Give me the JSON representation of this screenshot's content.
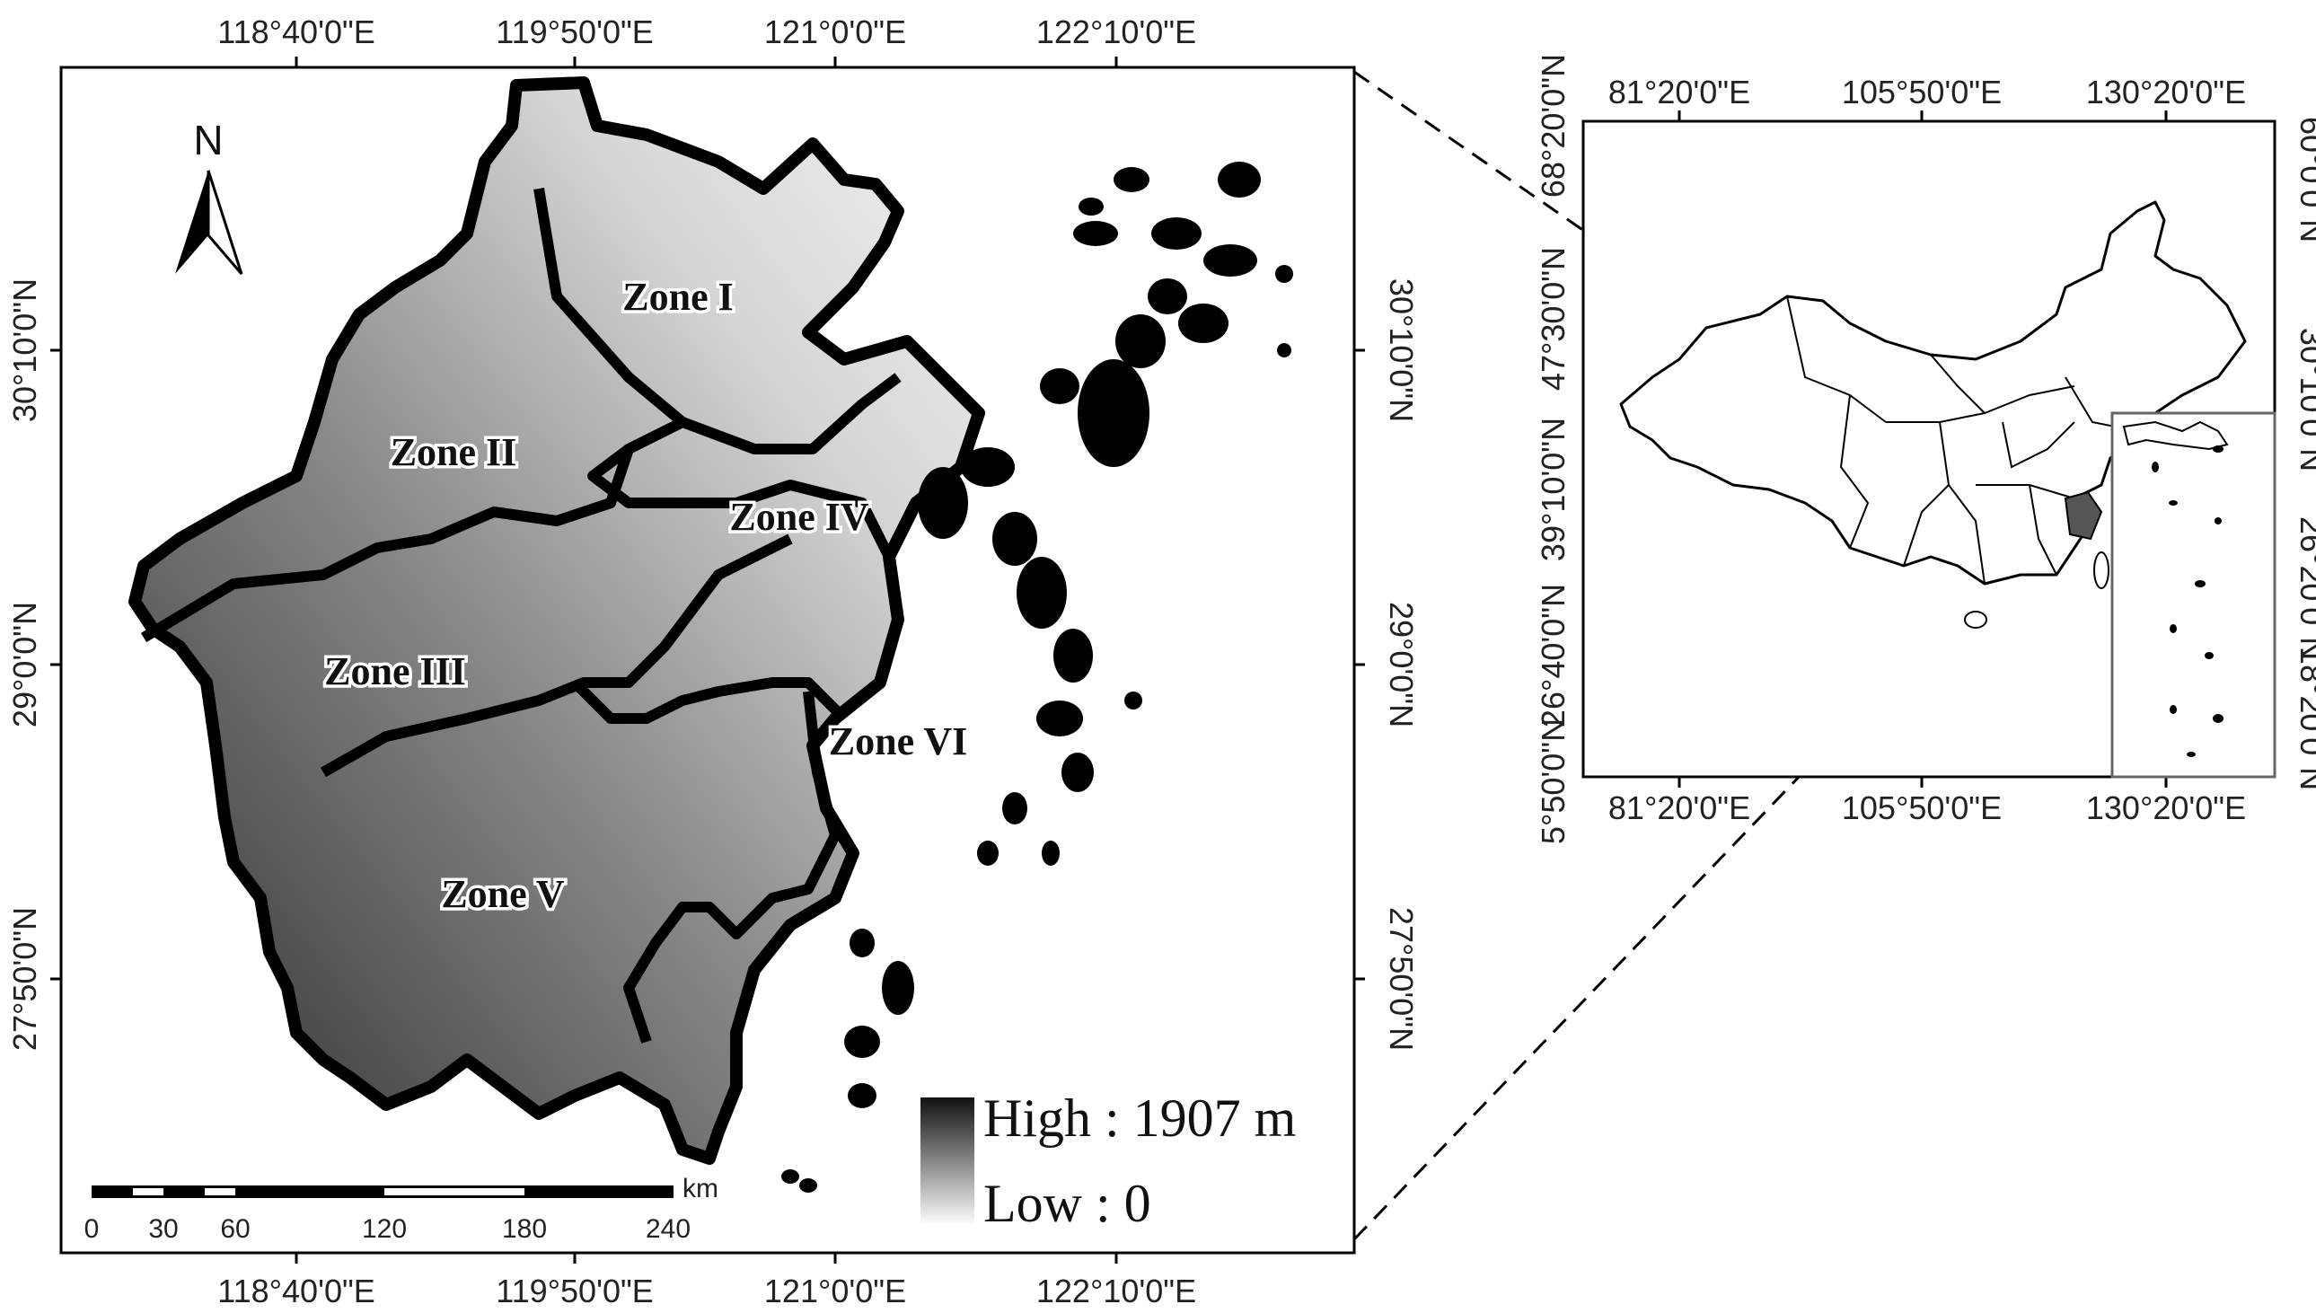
{
  "main_map": {
    "top_ticks": [
      "118°40'0\"E",
      "119°50'0\"E",
      "121°0'0\"E",
      "122°10'0\"E"
    ],
    "bottom_ticks": [
      "118°40'0\"E",
      "119°50'0\"E",
      "121°0'0\"E",
      "122°10'0\"E"
    ],
    "left_ticks": [
      "30°10'0\"N",
      "29°0'0\"N",
      "27°50'0\"N"
    ],
    "right_ticks": [
      "30°10'0\"N",
      "29°0'0\"N",
      "27°50'0\"N"
    ],
    "zones": [
      "Zone I",
      "Zone II",
      "Zone III",
      "Zone IV",
      "Zone V",
      "Zone VI"
    ],
    "legend": {
      "high": "High : 1907 m",
      "low": "Low : 0"
    },
    "north_label": "N",
    "scale_bar": {
      "unit": "km",
      "ticks": [
        "0",
        "30",
        "60",
        "120",
        "180",
        "240"
      ]
    }
  },
  "inset_map": {
    "top_ticks": [
      "81°20'0\"E",
      "105°50'0\"E",
      "130°20'0\"E"
    ],
    "bottom_ticks": [
      "81°20'0\"E",
      "105°50'0\"E",
      "130°20'0\"E"
    ],
    "left_ticks": [
      "68°20'0\"N",
      "47°30'0\"N",
      "39°10'0\"N",
      "26°40'0\"N",
      "5°50'0\"N"
    ],
    "right_ticks": [
      "60°0'0\"N",
      "30°10'0\"N",
      "26°20'0\"N",
      "18°20'0\"N"
    ]
  },
  "colors": {
    "frame": "#000000",
    "terrain_high": "#1a1a1a",
    "terrain_low": "#f2f2f2",
    "highlight": "#555555"
  }
}
